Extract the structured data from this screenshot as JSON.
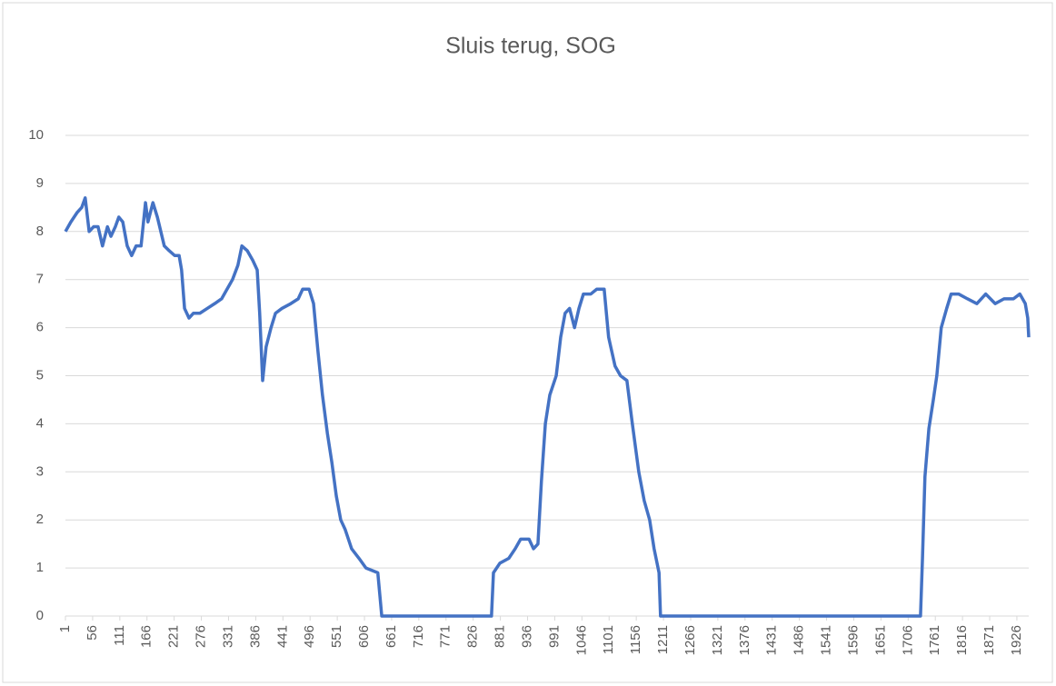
{
  "chart_data": {
    "type": "line",
    "title": "Sluis terug, SOG",
    "x": [
      1,
      12,
      25,
      34,
      41,
      49,
      58,
      67,
      76,
      86,
      93,
      102,
      109,
      117,
      126,
      135,
      144,
      154,
      163,
      168,
      178,
      187,
      194,
      201,
      211,
      222,
      231,
      236,
      242,
      251,
      260,
      273,
      288,
      303,
      317,
      328,
      339,
      350,
      358,
      369,
      380,
      389,
      394,
      400,
      407,
      417,
      426,
      439,
      457,
      472,
      481,
      494,
      503,
      512,
      521,
      531,
      540,
      549,
      558,
      567,
      580,
      595,
      609,
      633,
      641,
      863,
      867,
      880,
      898,
      911,
      922,
      939,
      948,
      957,
      964,
      972,
      981,
      994,
      1003,
      1012,
      1021,
      1031,
      1040,
      1049,
      1064,
      1076,
      1091,
      1100,
      1113,
      1124,
      1137,
      1148,
      1161,
      1172,
      1183,
      1192,
      1202,
      1205,
      1731,
      1735,
      1740,
      1748,
      1757,
      1764,
      1773,
      1784,
      1793,
      1808,
      1826,
      1845,
      1863,
      1882,
      1900,
      1919,
      1932,
      1943,
      1948,
      1950
    ],
    "series": [
      {
        "name": "SOG",
        "color": "#4472c4",
        "values": [
          8.0,
          8.2,
          8.4,
          8.5,
          8.7,
          8.0,
          8.1,
          8.1,
          7.7,
          8.1,
          7.9,
          8.1,
          8.3,
          8.2,
          7.7,
          7.5,
          7.7,
          7.7,
          8.6,
          8.2,
          8.6,
          8.3,
          8.0,
          7.7,
          7.6,
          7.5,
          7.5,
          7.2,
          6.4,
          6.2,
          6.3,
          6.3,
          6.4,
          6.5,
          6.6,
          6.8,
          7.0,
          7.3,
          7.7,
          7.6,
          7.4,
          7.2,
          6.3,
          4.9,
          5.6,
          6.0,
          6.3,
          6.4,
          6.5,
          6.6,
          6.8,
          6.8,
          6.5,
          5.5,
          4.6,
          3.8,
          3.2,
          2.5,
          2.0,
          1.8,
          1.4,
          1.2,
          1.0,
          0.9,
          0,
          0,
          0.9,
          1.1,
          1.2,
          1.4,
          1.6,
          1.6,
          1.4,
          1.5,
          2.8,
          4.0,
          4.6,
          5.0,
          5.8,
          6.3,
          6.4,
          6.0,
          6.4,
          6.7,
          6.7,
          6.8,
          6.8,
          5.8,
          5.2,
          5.0,
          4.9,
          4.0,
          3.0,
          2.4,
          2.0,
          1.4,
          0.9,
          0,
          0,
          1.2,
          2.9,
          3.9,
          4.5,
          5.0,
          6.0,
          6.4,
          6.7,
          6.7,
          6.6,
          6.5,
          6.7,
          6.5,
          6.6,
          6.6,
          6.7,
          6.5,
          6.2,
          5.8
        ]
      }
    ],
    "xlim": [
      1,
      1950
    ],
    "xticks": [
      1,
      56,
      111,
      166,
      221,
      276,
      331,
      386,
      441,
      496,
      551,
      606,
      661,
      716,
      771,
      826,
      881,
      936,
      991,
      1046,
      1101,
      1156,
      1211,
      1266,
      1321,
      1376,
      1431,
      1486,
      1541,
      1596,
      1651,
      1706,
      1761,
      1816,
      1871,
      1926
    ],
    "ylim": [
      0,
      10
    ],
    "yticks": [
      0,
      1,
      2,
      3,
      4,
      5,
      6,
      7,
      8,
      9,
      10
    ],
    "grid": true
  }
}
